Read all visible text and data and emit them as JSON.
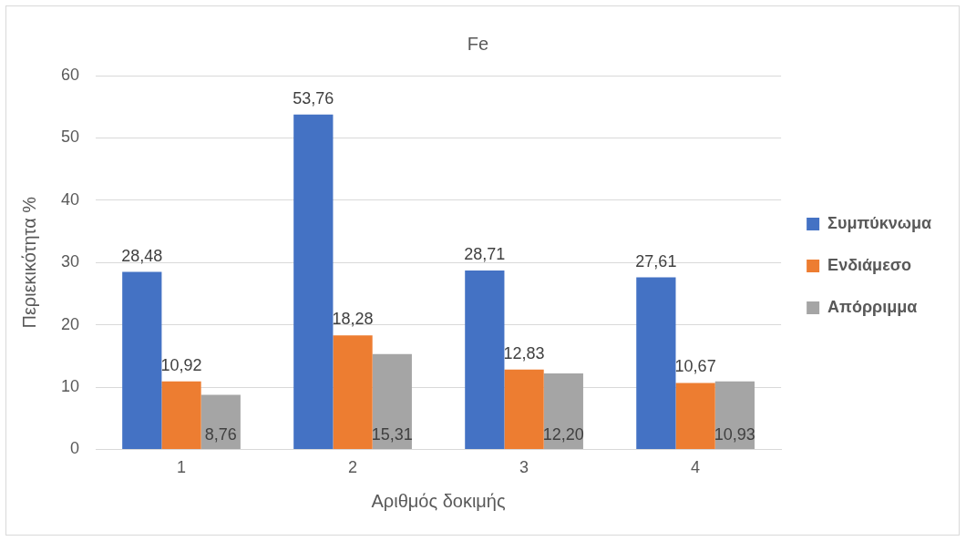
{
  "chart_data": {
    "type": "bar",
    "title": "Fe",
    "xlabel": "Αριθμός δοκιμής",
    "ylabel": "Περιεκικότητα %",
    "categories": [
      "1",
      "2",
      "3",
      "4"
    ],
    "series": [
      {
        "name": "Συμπύκνωμα",
        "color": "#4472c4",
        "values": [
          28.48,
          53.76,
          28.71,
          27.61
        ],
        "value_labels": [
          "28,48",
          "53,76",
          "28,71",
          "27,61"
        ]
      },
      {
        "name": "Ενδιάμεσο",
        "color": "#ed7d31",
        "values": [
          10.92,
          18.28,
          12.83,
          10.67
        ],
        "value_labels": [
          "10,92",
          "18,28",
          "12,83",
          "10,67"
        ]
      },
      {
        "name": "Απόρριμμα",
        "color": "#a5a5a5",
        "values": [
          8.76,
          15.31,
          12.2,
          10.93
        ],
        "value_labels": [
          "8,76",
          "15,31",
          "12,20",
          "10,93"
        ]
      }
    ],
    "ylim": [
      0,
      60
    ],
    "yticks": [
      0,
      10,
      20,
      30,
      40,
      50,
      60
    ],
    "grid": "y",
    "legend": "right"
  }
}
